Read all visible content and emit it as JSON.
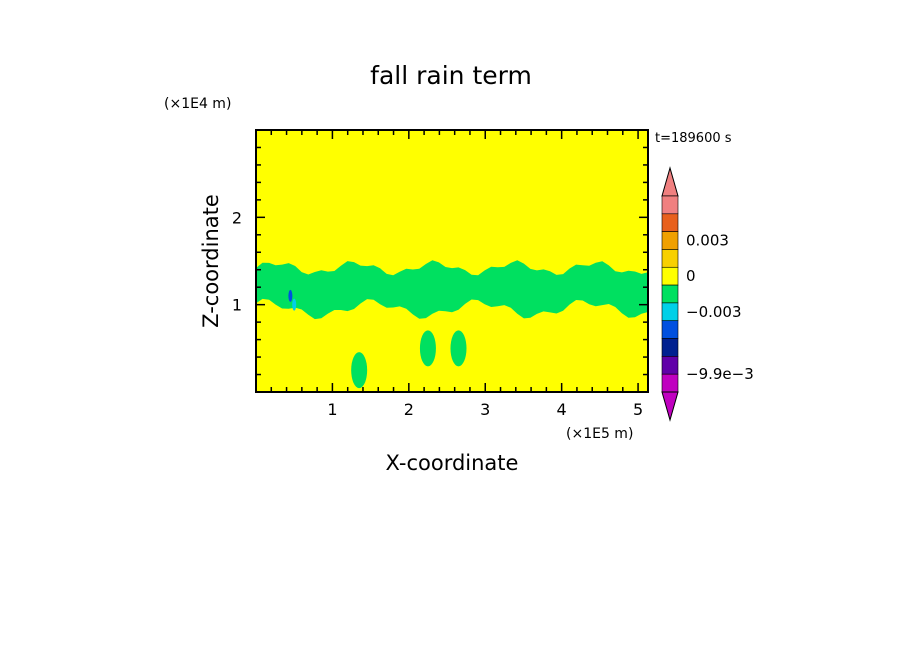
{
  "chart_data": {
    "type": "heatmap",
    "title": "fall rain term",
    "xlabel": "X-coordinate",
    "ylabel": "Z-coordinate",
    "x_unit": "(×1E5 m)",
    "y_unit": "(×1E4 m)",
    "time_label": "t=189600 s",
    "xlim": [
      0,
      5.13
    ],
    "ylim": [
      0,
      3.0
    ],
    "x_ticks": [
      1,
      2,
      3,
      4,
      5
    ],
    "y_ticks": [
      1,
      2
    ],
    "background_value": 0,
    "background_color": "#ffff00",
    "colorbar": {
      "levels": [
        {
          "color": "#f08080"
        },
        {
          "color": "#e8601c"
        },
        {
          "color": "#f0a000"
        },
        {
          "color": "#f8d000"
        },
        {
          "color": "#ffff00"
        },
        {
          "color": "#00e060"
        },
        {
          "color": "#00d0e8"
        },
        {
          "color": "#0050e0"
        },
        {
          "color": "#002090"
        },
        {
          "color": "#6000a8"
        },
        {
          "color": "#c000c0"
        }
      ],
      "tick_labels": [
        "0.003",
        "0",
        "−0.003",
        "−9.9e−3"
      ],
      "extend_top_color": "#f08080",
      "extend_bottom_color": "#c000c0"
    },
    "features": [
      {
        "kind": "band",
        "x_range": [
          0,
          5.13
        ],
        "z_range": [
          0.9,
          1.5
        ],
        "color": "#00e060"
      },
      {
        "kind": "blob",
        "x": 0.45,
        "z": 1.1,
        "color": "#0050e0"
      },
      {
        "kind": "blob",
        "x": 0.5,
        "z": 1.0,
        "color": "#00d0e8"
      },
      {
        "kind": "blob",
        "x": 2.65,
        "z": 0.5,
        "color": "#00e060"
      },
      {
        "kind": "blob",
        "x": 2.25,
        "z": 0.5,
        "color": "#00e060"
      },
      {
        "kind": "blob",
        "x": 1.35,
        "z": 0.25,
        "color": "#00e060"
      }
    ]
  }
}
